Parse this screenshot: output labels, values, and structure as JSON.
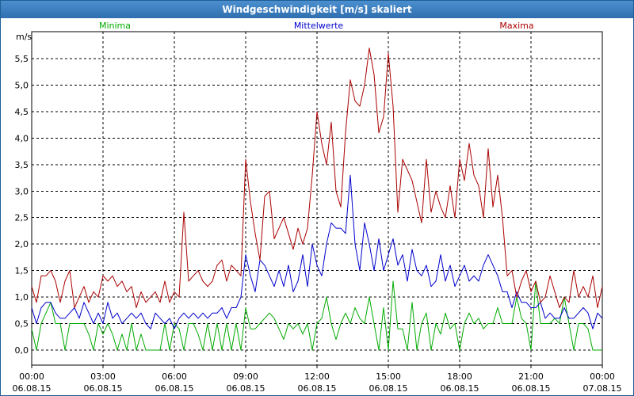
{
  "window": {
    "title": "Windgeschwindigkeit [m/s] skaliert"
  },
  "chart_data": {
    "type": "line",
    "title": "Windgeschwindigkeit [m/s] skaliert",
    "ylabel": "m/s",
    "xlabel": "",
    "ylim": [
      -0.05,
      6.0
    ],
    "y_ticks": [
      "0,0",
      "0,5",
      "1,0",
      "1,5",
      "2,0",
      "2,5",
      "3,0",
      "3,5",
      "4,0",
      "4,5",
      "5,0",
      "5,5"
    ],
    "x_ticks": [
      {
        "time": "00:00",
        "date": "06.08.15"
      },
      {
        "time": "03:00",
        "date": "06.08.15"
      },
      {
        "time": "06:00",
        "date": "06.08.15"
      },
      {
        "time": "09:00",
        "date": "06.08.15"
      },
      {
        "time": "12:00",
        "date": "06.08.15"
      },
      {
        "time": "15:00",
        "date": "06.08.15"
      },
      {
        "time": "18:00",
        "date": "06.08.15"
      },
      {
        "time": "21:00",
        "date": "06.08.15"
      },
      {
        "time": "00:00",
        "date": "07.08.15"
      }
    ],
    "x_range_hours": [
      0,
      24
    ],
    "grid": true,
    "legend_position": "top",
    "series": [
      {
        "name": "Minima",
        "color": "#00aa00",
        "x": [
          0.0,
          0.2,
          0.4,
          0.6,
          0.8,
          1.0,
          1.2,
          1.4,
          1.6,
          1.8,
          2.0,
          2.2,
          2.4,
          2.6,
          2.8,
          3.0,
          3.2,
          3.4,
          3.6,
          3.8,
          4.0,
          4.2,
          4.4,
          4.6,
          4.8,
          5.0,
          5.2,
          5.4,
          5.6,
          5.8,
          6.0,
          6.2,
          6.4,
          6.6,
          6.8,
          7.0,
          7.2,
          7.4,
          7.6,
          7.8,
          8.0,
          8.2,
          8.4,
          8.6,
          8.8,
          9.0,
          9.2,
          9.4,
          9.6,
          9.8,
          10.0,
          10.2,
          10.4,
          10.6,
          10.8,
          11.0,
          11.2,
          11.4,
          11.6,
          11.8,
          12.0,
          12.2,
          12.4,
          12.6,
          12.8,
          13.0,
          13.2,
          13.4,
          13.6,
          13.8,
          14.0,
          14.2,
          14.4,
          14.6,
          14.8,
          15.0,
          15.2,
          15.4,
          15.6,
          15.8,
          16.0,
          16.2,
          16.4,
          16.6,
          16.8,
          17.0,
          17.2,
          17.4,
          17.6,
          17.8,
          18.0,
          18.2,
          18.4,
          18.6,
          18.8,
          19.0,
          19.2,
          19.4,
          19.6,
          19.8,
          20.0,
          20.2,
          20.4,
          20.6,
          20.8,
          21.0,
          21.2,
          21.4,
          21.6,
          21.8,
          22.0,
          22.2,
          22.4,
          22.6,
          22.8,
          23.0,
          23.2,
          23.4,
          23.6,
          23.8,
          24.0
        ],
        "values": [
          0.4,
          0.0,
          0.5,
          0.7,
          0.9,
          0.5,
          0.5,
          0.0,
          0.5,
          0.5,
          0.5,
          0.5,
          0.3,
          0.0,
          0.5,
          0.3,
          0.5,
          0.3,
          0.0,
          0.3,
          0.0,
          0.5,
          0.0,
          0.3,
          0.0,
          0.0,
          0.0,
          0.0,
          0.5,
          0.0,
          0.5,
          0.4,
          0.0,
          0.5,
          0.5,
          0.3,
          0.0,
          0.5,
          0.0,
          0.5,
          0.0,
          0.5,
          0.0,
          0.5,
          0.0,
          0.8,
          0.4,
          0.4,
          0.5,
          0.6,
          0.7,
          0.6,
          0.4,
          0.2,
          0.5,
          0.4,
          0.5,
          0.3,
          0.5,
          0.0,
          0.5,
          0.6,
          1.0,
          0.5,
          0.2,
          0.5,
          0.7,
          0.5,
          0.8,
          0.6,
          0.5,
          1.0,
          0.5,
          0.0,
          0.8,
          0.0,
          1.3,
          0.4,
          0.4,
          0.0,
          0.9,
          0.0,
          0.5,
          0.7,
          0.0,
          0.5,
          0.3,
          0.7,
          0.4,
          0.5,
          0.0,
          0.5,
          0.7,
          0.5,
          0.6,
          0.4,
          0.5,
          0.5,
          0.8,
          0.5,
          0.5,
          0.5,
          1.0,
          0.6,
          0.5,
          0.0,
          1.3,
          0.5,
          0.5,
          0.5,
          0.6,
          0.5,
          1.0,
          0.5,
          0.0,
          0.5,
          0.5,
          0.4,
          0.0,
          0.0,
          0.0
        ],
        "values_note": "y values in m/s"
      },
      {
        "name": "Mittelwerte",
        "color": "#0000cc",
        "x": [
          0.0,
          0.2,
          0.4,
          0.6,
          0.8,
          1.0,
          1.2,
          1.4,
          1.6,
          1.8,
          2.0,
          2.2,
          2.4,
          2.6,
          2.8,
          3.0,
          3.2,
          3.4,
          3.6,
          3.8,
          4.0,
          4.2,
          4.4,
          4.6,
          4.8,
          5.0,
          5.2,
          5.4,
          5.6,
          5.8,
          6.0,
          6.2,
          6.4,
          6.6,
          6.8,
          7.0,
          7.2,
          7.4,
          7.6,
          7.8,
          8.0,
          8.2,
          8.4,
          8.6,
          8.8,
          9.0,
          9.2,
          9.4,
          9.6,
          9.8,
          10.0,
          10.2,
          10.4,
          10.6,
          10.8,
          11.0,
          11.2,
          11.4,
          11.6,
          11.8,
          12.0,
          12.2,
          12.4,
          12.6,
          12.8,
          13.0,
          13.2,
          13.4,
          13.6,
          13.8,
          14.0,
          14.2,
          14.4,
          14.6,
          14.8,
          15.0,
          15.2,
          15.4,
          15.6,
          15.8,
          16.0,
          16.2,
          16.4,
          16.6,
          16.8,
          17.0,
          17.2,
          17.4,
          17.6,
          17.8,
          18.0,
          18.2,
          18.4,
          18.6,
          18.8,
          19.0,
          19.2,
          19.4,
          19.6,
          19.8,
          20.0,
          20.2,
          20.4,
          20.6,
          20.8,
          21.0,
          21.2,
          21.4,
          21.6,
          21.8,
          22.0,
          22.2,
          22.4,
          22.6,
          22.8,
          23.0,
          23.2,
          23.4,
          23.6,
          23.8,
          24.0
        ],
        "values": [
          0.8,
          0.5,
          0.8,
          0.9,
          0.9,
          0.7,
          0.6,
          0.6,
          0.7,
          0.8,
          0.6,
          0.9,
          0.7,
          0.5,
          0.7,
          0.5,
          0.9,
          0.6,
          0.7,
          0.5,
          0.6,
          0.7,
          0.6,
          0.7,
          0.5,
          0.4,
          0.7,
          0.6,
          0.5,
          0.6,
          0.4,
          0.6,
          0.7,
          0.6,
          0.7,
          0.6,
          0.7,
          0.6,
          0.7,
          0.7,
          0.8,
          0.6,
          0.8,
          0.8,
          1.0,
          1.8,
          1.4,
          1.1,
          1.7,
          1.6,
          1.4,
          1.2,
          1.5,
          1.2,
          1.6,
          1.1,
          1.3,
          1.8,
          1.2,
          2.0,
          1.6,
          1.4,
          2.0,
          2.4,
          2.3,
          2.3,
          2.2,
          3.3,
          2.0,
          1.5,
          2.4,
          2.0,
          1.5,
          2.1,
          1.5,
          1.8,
          2.1,
          1.6,
          1.8,
          1.3,
          1.9,
          1.5,
          1.4,
          1.6,
          1.2,
          1.3,
          1.8,
          1.3,
          1.6,
          1.2,
          1.4,
          1.6,
          1.3,
          1.4,
          1.3,
          1.6,
          1.8,
          1.6,
          1.4,
          1.1,
          1.1,
          0.8,
          1.1,
          0.9,
          0.9,
          0.8,
          0.8,
          0.9,
          0.6,
          0.7,
          0.6,
          0.6,
          0.8,
          0.6,
          0.6,
          0.7,
          0.8,
          0.7,
          0.4,
          0.7,
          0.6
        ],
        "values_note": "y values in m/s"
      },
      {
        "name": "Maxima",
        "color": "#aa0000",
        "x": [
          0.0,
          0.2,
          0.4,
          0.6,
          0.8,
          1.0,
          1.2,
          1.4,
          1.6,
          1.8,
          2.0,
          2.2,
          2.4,
          2.6,
          2.8,
          3.0,
          3.2,
          3.4,
          3.6,
          3.8,
          4.0,
          4.2,
          4.4,
          4.6,
          4.8,
          5.0,
          5.2,
          5.4,
          5.6,
          5.8,
          6.0,
          6.2,
          6.4,
          6.6,
          6.8,
          7.0,
          7.2,
          7.4,
          7.6,
          7.8,
          8.0,
          8.2,
          8.4,
          8.6,
          8.8,
          9.0,
          9.2,
          9.4,
          9.6,
          9.8,
          10.0,
          10.2,
          10.4,
          10.6,
          10.8,
          11.0,
          11.2,
          11.4,
          11.6,
          11.8,
          12.0,
          12.2,
          12.4,
          12.6,
          12.8,
          13.0,
          13.2,
          13.4,
          13.6,
          13.8,
          14.0,
          14.2,
          14.4,
          14.6,
          14.8,
          15.0,
          15.2,
          15.4,
          15.6,
          15.8,
          16.0,
          16.2,
          16.4,
          16.6,
          16.8,
          17.0,
          17.2,
          17.4,
          17.6,
          17.8,
          18.0,
          18.2,
          18.4,
          18.6,
          18.8,
          19.0,
          19.2,
          19.4,
          19.6,
          19.8,
          20.0,
          20.2,
          20.4,
          20.6,
          20.8,
          21.0,
          21.2,
          21.4,
          21.6,
          21.8,
          22.0,
          22.2,
          22.4,
          22.6,
          22.8,
          23.0,
          23.2,
          23.4,
          23.6,
          23.8,
          24.0
        ],
        "values": [
          1.2,
          0.9,
          1.4,
          1.4,
          1.5,
          1.3,
          0.9,
          1.3,
          1.5,
          0.8,
          1.0,
          1.2,
          0.9,
          1.1,
          1.0,
          1.4,
          1.3,
          1.4,
          1.2,
          1.3,
          1.1,
          1.2,
          0.8,
          1.1,
          0.9,
          1.0,
          1.1,
          0.9,
          1.3,
          0.9,
          1.1,
          1.0,
          2.6,
          1.3,
          1.4,
          1.5,
          1.3,
          1.2,
          1.3,
          1.6,
          1.7,
          1.3,
          1.6,
          1.5,
          1.4,
          3.6,
          2.8,
          2.2,
          1.7,
          2.9,
          3.0,
          2.1,
          2.3,
          2.5,
          2.2,
          1.9,
          2.3,
          2.0,
          2.3,
          3.3,
          4.5,
          3.9,
          3.5,
          4.3,
          3.0,
          2.7,
          4.1,
          5.1,
          4.7,
          4.6,
          5.0,
          5.7,
          5.2,
          4.1,
          4.4,
          5.6,
          4.6,
          2.6,
          3.6,
          3.4,
          3.2,
          2.8,
          2.4,
          3.6,
          2.6,
          3.0,
          2.7,
          2.5,
          3.1,
          2.5,
          3.6,
          3.2,
          3.9,
          3.3,
          3.1,
          2.5,
          3.8,
          2.7,
          3.3,
          2.5,
          1.4,
          1.5,
          1.0,
          1.3,
          1.5,
          1.1,
          1.3,
          0.9,
          1.0,
          1.4,
          1.1,
          0.8,
          1.0,
          0.9,
          1.5,
          1.0,
          1.2,
          1.0,
          1.4,
          0.8,
          1.2
        ],
        "values_note": "y values in m/s"
      }
    ]
  }
}
